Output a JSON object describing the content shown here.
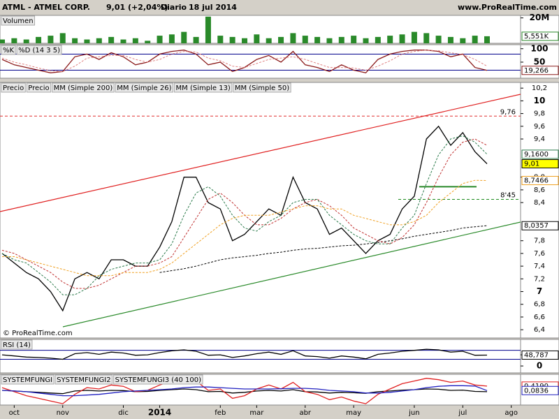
{
  "header": {
    "symbol": "ATML - ATMEL CORP.",
    "quote": "9,01 (+2,04%)",
    "period": "Diario",
    "date": "18 jul 2014",
    "site": "www.ProRealTime.com"
  },
  "chart_data": [
    {
      "type": "bar",
      "title": "Volumen",
      "color": "#2a8a2a",
      "ylim": [
        0,
        22
      ],
      "yticks": [
        {
          "value": 20,
          "label": "20M"
        }
      ],
      "values": [
        3,
        4,
        3,
        5,
        6,
        8,
        4,
        3,
        4,
        5,
        3,
        4,
        2,
        6,
        7,
        9,
        5,
        21,
        6,
        5,
        4,
        7,
        4,
        5,
        8,
        6,
        5,
        4,
        5,
        6,
        4,
        5,
        6,
        7,
        9,
        8,
        6,
        5,
        4,
        6,
        5.551,
        null,
        null
      ],
      "last_label": "5,551K"
    },
    {
      "type": "line",
      "ylim": [
        -10,
        115
      ],
      "yticks": [
        100,
        50
      ],
      "levels": [
        80,
        20
      ],
      "series": [
        {
          "name": "%K",
          "color": "#8b1a1a",
          "last_label": "19,266",
          "values": [
            60,
            40,
            30,
            20,
            10,
            15,
            70,
            80,
            60,
            85,
            70,
            40,
            50,
            80,
            90,
            95,
            80,
            40,
            50,
            15,
            30,
            60,
            75,
            50,
            90,
            40,
            30,
            15,
            40,
            20,
            10,
            60,
            80,
            90,
            95,
            95,
            90,
            70,
            80,
            30,
            19.266,
            null,
            null
          ]
        },
        {
          "name": "%D (14 3 5)",
          "color": "#e08080",
          "dash": true,
          "values": [
            65,
            50,
            40,
            28,
            18,
            15,
            35,
            65,
            70,
            75,
            75,
            60,
            50,
            60,
            80,
            90,
            88,
            65,
            55,
            35,
            30,
            45,
            60,
            65,
            70,
            60,
            45,
            30,
            30,
            28,
            20,
            35,
            55,
            80,
            90,
            95,
            92,
            85,
            78,
            60,
            35,
            null,
            null
          ]
        }
      ]
    },
    {
      "type": "line",
      "title": "Precio",
      "source": "© ProRealTime.com",
      "categories": [
        null,
        "oct",
        null,
        null,
        null,
        "nov",
        null,
        null,
        null,
        null,
        "dic",
        null,
        null,
        "2014",
        null,
        null,
        null,
        null,
        "feb",
        null,
        null,
        "mar",
        null,
        null,
        null,
        "abr",
        null,
        null,
        null,
        "may",
        null,
        null,
        null,
        null,
        "jun",
        null,
        null,
        null,
        "jul",
        null,
        null,
        null,
        "ago"
      ],
      "ylim": [
        6.27,
        10.29
      ],
      "yticks": [
        {
          "value": 10.2,
          "label": "10,2"
        },
        10,
        {
          "value": 9.8,
          "label": "9,8"
        },
        {
          "value": 9.6,
          "label": "9,6"
        },
        {
          "value": 9.4,
          "label": "9,4"
        },
        {
          "value": 8.8,
          "label": "8,8"
        },
        {
          "value": 8.6,
          "label": "8,6"
        },
        {
          "value": 8.4,
          "label": "8,4"
        },
        {
          "value": 7.8,
          "label": "7,8"
        },
        {
          "value": 7.6,
          "label": "7,6"
        },
        {
          "value": 7.4,
          "label": "7,4"
        },
        {
          "value": 7.2,
          "label": "7,2"
        },
        7,
        {
          "value": 6.8,
          "label": "6,8"
        },
        {
          "value": 6.6,
          "label": "6,6"
        },
        {
          "value": 6.4,
          "label": "6,4"
        }
      ],
      "reference_lines": [
        {
          "value": 9.76,
          "label": "9,76",
          "color": "#e03030"
        },
        {
          "value": 8.45,
          "label": "8'45",
          "color": "#1a8a1a"
        }
      ],
      "series": [
        {
          "name": "Precio",
          "color": "#000000",
          "last_label": "9,01",
          "label_background": "#ffff00",
          "values": [
            7.6,
            7.45,
            7.3,
            7.2,
            7.0,
            6.7,
            7.2,
            7.3,
            7.2,
            7.5,
            7.5,
            7.4,
            7.4,
            7.7,
            8.1,
            8.8,
            8.8,
            8.4,
            8.3,
            7.8,
            7.9,
            8.1,
            8.3,
            8.2,
            8.8,
            8.4,
            8.3,
            7.9,
            8.0,
            7.8,
            7.6,
            7.8,
            7.9,
            8.3,
            8.5,
            9.4,
            9.6,
            9.3,
            9.5,
            9.2,
            9.01,
            null,
            null
          ]
        },
        {
          "name": "MM (Simple 200)",
          "color": "#000000",
          "dash": true,
          "last_label": "8,0357",
          "values": [
            null,
            null,
            null,
            null,
            null,
            null,
            null,
            null,
            null,
            null,
            null,
            null,
            null,
            7.3,
            7.33,
            7.36,
            7.4,
            7.45,
            7.5,
            7.53,
            7.55,
            7.57,
            7.6,
            7.62,
            7.65,
            7.67,
            7.68,
            7.7,
            7.72,
            7.73,
            7.75,
            7.77,
            7.8,
            7.83,
            7.87,
            7.9,
            7.93,
            7.96,
            8.0,
            8.02,
            8.0357,
            null,
            null
          ]
        },
        {
          "name": "MM (Simple 26)",
          "color": "#c03030",
          "dash": true,
          "values": [
            7.65,
            7.6,
            7.5,
            7.4,
            7.3,
            7.15,
            7.05,
            7.05,
            7.1,
            7.2,
            7.3,
            7.4,
            7.4,
            7.45,
            7.55,
            7.85,
            8.15,
            8.45,
            8.55,
            8.4,
            8.2,
            8.05,
            8.05,
            8.15,
            8.3,
            8.4,
            8.45,
            8.35,
            8.2,
            8.0,
            7.9,
            7.8,
            7.75,
            7.85,
            8.05,
            8.4,
            8.8,
            9.15,
            9.35,
            9.4,
            9.3,
            null,
            null
          ]
        },
        {
          "name": "MM (Simple 13)",
          "color": "#2a7a4a",
          "dash": true,
          "last_label": "9,1600",
          "values": [
            7.6,
            7.5,
            7.45,
            7.3,
            7.15,
            6.95,
            6.95,
            7.05,
            7.25,
            7.35,
            7.4,
            7.45,
            7.45,
            7.5,
            7.75,
            8.2,
            8.55,
            8.65,
            8.5,
            8.2,
            8.0,
            7.95,
            8.1,
            8.2,
            8.4,
            8.45,
            8.45,
            8.2,
            8.05,
            7.9,
            7.8,
            7.75,
            7.75,
            8.0,
            8.2,
            8.7,
            9.15,
            9.4,
            9.45,
            9.35,
            9.16,
            null,
            null
          ]
        },
        {
          "name": "MM (Simple 50)",
          "color": "#f0a020",
          "dash": true,
          "last_label": "8,7466",
          "values": [
            7.55,
            7.55,
            7.5,
            7.45,
            7.4,
            7.35,
            7.3,
            7.25,
            7.25,
            7.25,
            7.3,
            7.3,
            7.3,
            7.35,
            7.45,
            7.6,
            7.75,
            7.9,
            8.05,
            8.15,
            8.2,
            8.2,
            8.2,
            8.25,
            8.3,
            8.35,
            8.35,
            8.3,
            8.3,
            8.2,
            8.15,
            8.1,
            8.05,
            8.05,
            8.1,
            8.2,
            8.4,
            8.55,
            8.7,
            8.75,
            8.7466,
            null,
            null
          ]
        }
      ]
    },
    {
      "type": "line",
      "title": "RSI (14)",
      "color": "#000000",
      "ylim": [
        -31,
        119
      ],
      "yticks": [
        50,
        0
      ],
      "levels": [
        70,
        30
      ],
      "values": [
        50,
        45,
        40,
        38,
        35,
        30,
        55,
        60,
        52,
        62,
        58,
        48,
        50,
        60,
        68,
        72,
        66,
        48,
        50,
        38,
        45,
        55,
        62,
        52,
        68,
        45,
        42,
        35,
        45,
        40,
        32,
        52,
        58,
        66,
        70,
        75,
        72,
        62,
        66,
        48,
        48.787,
        null,
        null
      ],
      "last_label": "48,787"
    },
    {
      "type": "line",
      "ylim": [
        -1,
        1.3
      ],
      "series": [
        {
          "name": "SYSTEMFUNGI",
          "color": "#000000",
          "values": [
            0.1,
            0.05,
            0,
            -0.05,
            -0.1,
            -0.15,
            0.05,
            0.1,
            0.05,
            0.1,
            0.08,
            0,
            0.02,
            0.1,
            0.15,
            0.2,
            0.15,
            0,
            0.02,
            -0.1,
            -0.05,
            0.05,
            0.1,
            0.05,
            0.15,
            0,
            -0.02,
            -0.1,
            -0.05,
            -0.08,
            -0.12,
            0,
            0.05,
            0.12,
            0.15,
            0.2,
            0.18,
            0.1,
            0.12,
            0.02,
            0.0,
            null,
            null
          ]
        },
        {
          "name": "SYSTEMFUNGI2",
          "color": "#e02020",
          "last_label": "0,4190",
          "values": [
            0.3,
            0,
            -0.3,
            -0.5,
            -0.7,
            -0.9,
            -0.2,
            0.3,
            0.2,
            0.5,
            0.4,
            0,
            0.1,
            0.5,
            0.8,
            1.0,
            0.8,
            0.1,
            0.2,
            -0.5,
            -0.3,
            0.2,
            0.5,
            0.2,
            0.7,
            0,
            -0.2,
            -0.6,
            -0.4,
            -0.7,
            -0.9,
            -0.2,
            0.2,
            0.6,
            0.8,
            1.0,
            0.9,
            0.7,
            0.8,
            0.5,
            0.419,
            null,
            null
          ]
        },
        {
          "name": "SYSTEMFUNGI3 (40 100)",
          "color": "#2020c0",
          "last_label": "0,0836",
          "values": [
            0.1,
            0.05,
            0,
            -0.1,
            -0.2,
            -0.3,
            -0.3,
            -0.25,
            -0.2,
            -0.1,
            0,
            0.05,
            0.1,
            0.15,
            0.2,
            0.3,
            0.35,
            0.35,
            0.3,
            0.25,
            0.2,
            0.2,
            0.2,
            0.22,
            0.25,
            0.25,
            0.2,
            0.1,
            0.05,
            0,
            -0.1,
            -0.1,
            -0.05,
            0.05,
            0.15,
            0.3,
            0.4,
            0.45,
            0.45,
            0.42,
            0.0836,
            null,
            null
          ]
        }
      ]
    }
  ]
}
